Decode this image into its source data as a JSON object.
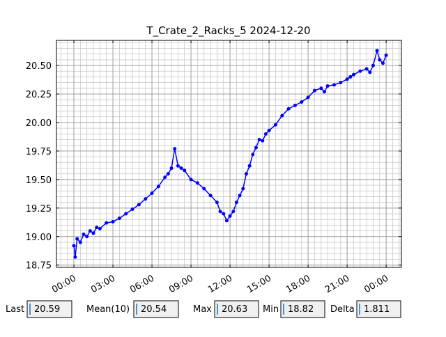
{
  "chart_data": {
    "type": "line",
    "title": "T_Crate_2_Racks_5 2024-12-20",
    "x": [
      0,
      0.1,
      0.25,
      0.5,
      0.75,
      1,
      1.25,
      1.5,
      1.75,
      2,
      2.5,
      3,
      3.5,
      4,
      4.5,
      5,
      5.5,
      6,
      6.5,
      7,
      7.25,
      7.5,
      7.75,
      8,
      8.25,
      8.5,
      9,
      9.5,
      10,
      10.5,
      11,
      11.25,
      11.5,
      11.75,
      12,
      12.25,
      12.5,
      12.75,
      13,
      13.25,
      13.5,
      13.75,
      14,
      14.25,
      14.5,
      14.75,
      15,
      15.5,
      16,
      16.5,
      17,
      17.5,
      18,
      18.5,
      19,
      19.25,
      19.5,
      20,
      20.5,
      21,
      21.25,
      21.5,
      22,
      22.5,
      22.75,
      23,
      23.3,
      23.5,
      23.75,
      24
    ],
    "series": [
      {
        "name": "T_Crate_2_Racks_5",
        "color": "#0000ff",
        "values": [
          18.92,
          18.82,
          18.98,
          18.95,
          19.02,
          19.0,
          19.05,
          19.03,
          19.08,
          19.07,
          19.12,
          19.13,
          19.16,
          19.2,
          19.24,
          19.28,
          19.33,
          19.38,
          19.44,
          19.52,
          19.55,
          19.6,
          19.77,
          19.62,
          19.6,
          19.58,
          19.5,
          19.47,
          19.42,
          19.36,
          19.3,
          19.22,
          19.2,
          19.14,
          19.18,
          19.22,
          19.3,
          19.36,
          19.42,
          19.55,
          19.62,
          19.72,
          19.78,
          19.85,
          19.84,
          19.9,
          19.93,
          19.98,
          20.06,
          20.12,
          20.15,
          20.18,
          20.22,
          20.28,
          20.3,
          20.27,
          20.32,
          20.33,
          20.35,
          20.38,
          20.4,
          20.42,
          20.45,
          20.47,
          20.44,
          20.5,
          20.63,
          20.55,
          20.52,
          20.59
        ]
      }
    ],
    "xlim": [
      -1.34,
      25.17
    ],
    "ylim": [
      18.73,
      20.72
    ],
    "xticks": [
      {
        "value": 0,
        "label": "00:00"
      },
      {
        "value": 3,
        "label": "03:00"
      },
      {
        "value": 6,
        "label": "06:00"
      },
      {
        "value": 9,
        "label": "09:00"
      },
      {
        "value": 12,
        "label": "12:00"
      },
      {
        "value": 15,
        "label": "15:00"
      },
      {
        "value": 18,
        "label": "18:00"
      },
      {
        "value": 21,
        "label": "21:00"
      },
      {
        "value": 24,
        "label": "00:00"
      }
    ],
    "yticks": [
      18.75,
      {
        "value": 19,
        "label": "19.00"
      },
      19.25,
      {
        "value": 19.5,
        "label": "19.50"
      },
      19.75,
      {
        "value": 20,
        "label": "20.00"
      },
      20.25,
      {
        "value": 20.5,
        "label": "20.50"
      }
    ],
    "grid": true,
    "minor_grid_step": {
      "x": 0.5,
      "y": 0.05
    }
  },
  "stats": [
    {
      "label": "Last",
      "value": "20.59"
    },
    {
      "label": "Mean(10)",
      "value": "20.54"
    },
    {
      "label": "Max",
      "value": "20.63"
    },
    {
      "label": "Min",
      "value": "18.82"
    },
    {
      "label": "Delta",
      "value": "1.811"
    }
  ]
}
